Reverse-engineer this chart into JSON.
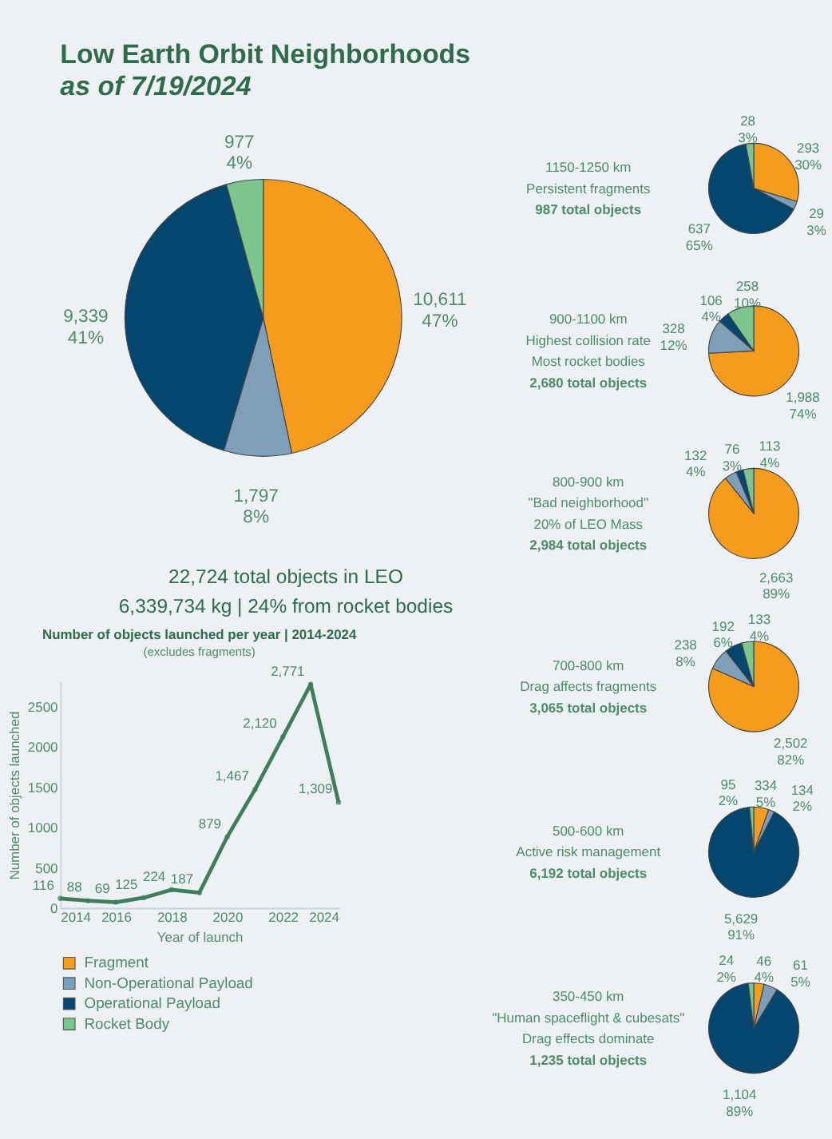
{
  "chart_data": [
    {
      "type": "pie",
      "title": "Low Earth Orbit Neighborhoods",
      "subtitle": "as of 7/19/2024",
      "categories": [
        "Fragment",
        "Non-Operational Payload",
        "Operational Payload",
        "Rocket Body"
      ],
      "values": [
        10611,
        1797,
        9339,
        977
      ],
      "colors": [
        "#f59c1f",
        "#7f9fb9",
        "#04466e",
        "#7cc58e"
      ],
      "value_labels": [
        "10,611\n47%",
        "1,797\n8%",
        "9,339\n41%",
        "977\n4%"
      ],
      "annotations": [
        "22,724 total objects in LEO",
        "6,339,734 kg | 24% from rocket bodies"
      ],
      "legend": "bottom left"
    },
    {
      "type": "pie",
      "title": "1150-1250 km",
      "values": [
        293,
        29,
        637,
        28
      ],
      "colors": [
        "#f59c1f",
        "#7f9fb9",
        "#04466e",
        "#7cc58e"
      ],
      "value_labels": [
        "293\n30%",
        "29\n3%",
        "637\n65%",
        "28\n3%"
      ],
      "annotations": [
        "Persistent fragments",
        "987 total objects"
      ]
    },
    {
      "type": "pie",
      "title": "900-1100 km",
      "values": [
        1988,
        328,
        106,
        258
      ],
      "colors": [
        "#f59c1f",
        "#7f9fb9",
        "#04466e",
        "#7cc58e"
      ],
      "value_labels": [
        "1,988\n74%",
        "328\n12%",
        "106\n4%",
        "258\n10%"
      ],
      "annotations": [
        "Highest collision rate",
        "Most rocket bodies",
        "2,680 total objects"
      ]
    },
    {
      "type": "pie",
      "title": "800-900 km",
      "values": [
        2663,
        132,
        76,
        113
      ],
      "colors": [
        "#f59c1f",
        "#7f9fb9",
        "#04466e",
        "#7cc58e"
      ],
      "value_labels": [
        "2,663\n89%",
        "132\n4%",
        "76\n3%",
        "113\n4%"
      ],
      "annotations": [
        "\"Bad neighborhood\"",
        "20% of LEO Mass",
        "2,984 total objects"
      ]
    },
    {
      "type": "pie",
      "title": "700-800 km",
      "values": [
        2502,
        238,
        192,
        133
      ],
      "colors": [
        "#f59c1f",
        "#7f9fb9",
        "#04466e",
        "#7cc58e"
      ],
      "value_labels": [
        "2,502\n82%",
        "238\n8%",
        "192\n6%",
        "133\n4%"
      ],
      "annotations": [
        "Drag affects fragments",
        "3,065 total objects"
      ]
    },
    {
      "type": "pie",
      "title": "500-600 km",
      "values": [
        334,
        134,
        5629,
        95
      ],
      "colors": [
        "#f59c1f",
        "#7f9fb9",
        "#04466e",
        "#7cc58e"
      ],
      "value_labels": [
        "334\n5%",
        "134\n2%",
        "5,629\n91%",
        "95\n2%"
      ],
      "annotations": [
        "Active risk management",
        "6,192 total objects"
      ]
    },
    {
      "type": "pie",
      "title": "350-450 km",
      "values": [
        46,
        61,
        1104,
        24
      ],
      "colors": [
        "#f59c1f",
        "#7f9fb9",
        "#04466e",
        "#7cc58e"
      ],
      "value_labels": [
        "46\n4%",
        "61\n5%",
        "1,104\n89%",
        "24\n2%"
      ],
      "annotations": [
        "\"Human spaceflight & cubesats\"",
        "Drag effects dominate",
        "1,235 total objects"
      ]
    },
    {
      "type": "line",
      "title": "Number of objects launched per year | 2014-2024",
      "subtitle": "(excludes fragments)",
      "xlabel": "Year of launch",
      "ylabel": "Number of objects launched",
      "x": [
        2014,
        2015,
        2016,
        2017,
        2018,
        2019,
        2020,
        2021,
        2022,
        2023,
        2024
      ],
      "series": [
        {
          "color": "#3f7d5c",
          "values": [
            116,
            88,
            69,
            125,
            224,
            187,
            879,
            1467,
            2120,
            2771,
            1309
          ],
          "value_labels": [
            "116",
            "88",
            "69",
            "125",
            "224",
            "187",
            "879",
            "1,467",
            "2,120",
            "2,771",
            "1,309"
          ]
        }
      ],
      "xlim": [
        2014,
        2024
      ],
      "xticks": [
        2014,
        2016,
        2018,
        2020,
        2022,
        2024
      ],
      "ylim": [
        0,
        2800
      ],
      "yticks": [
        0,
        500,
        1000,
        1500,
        2000,
        2500
      ],
      "marker": "circle",
      "grid": false
    }
  ]
}
